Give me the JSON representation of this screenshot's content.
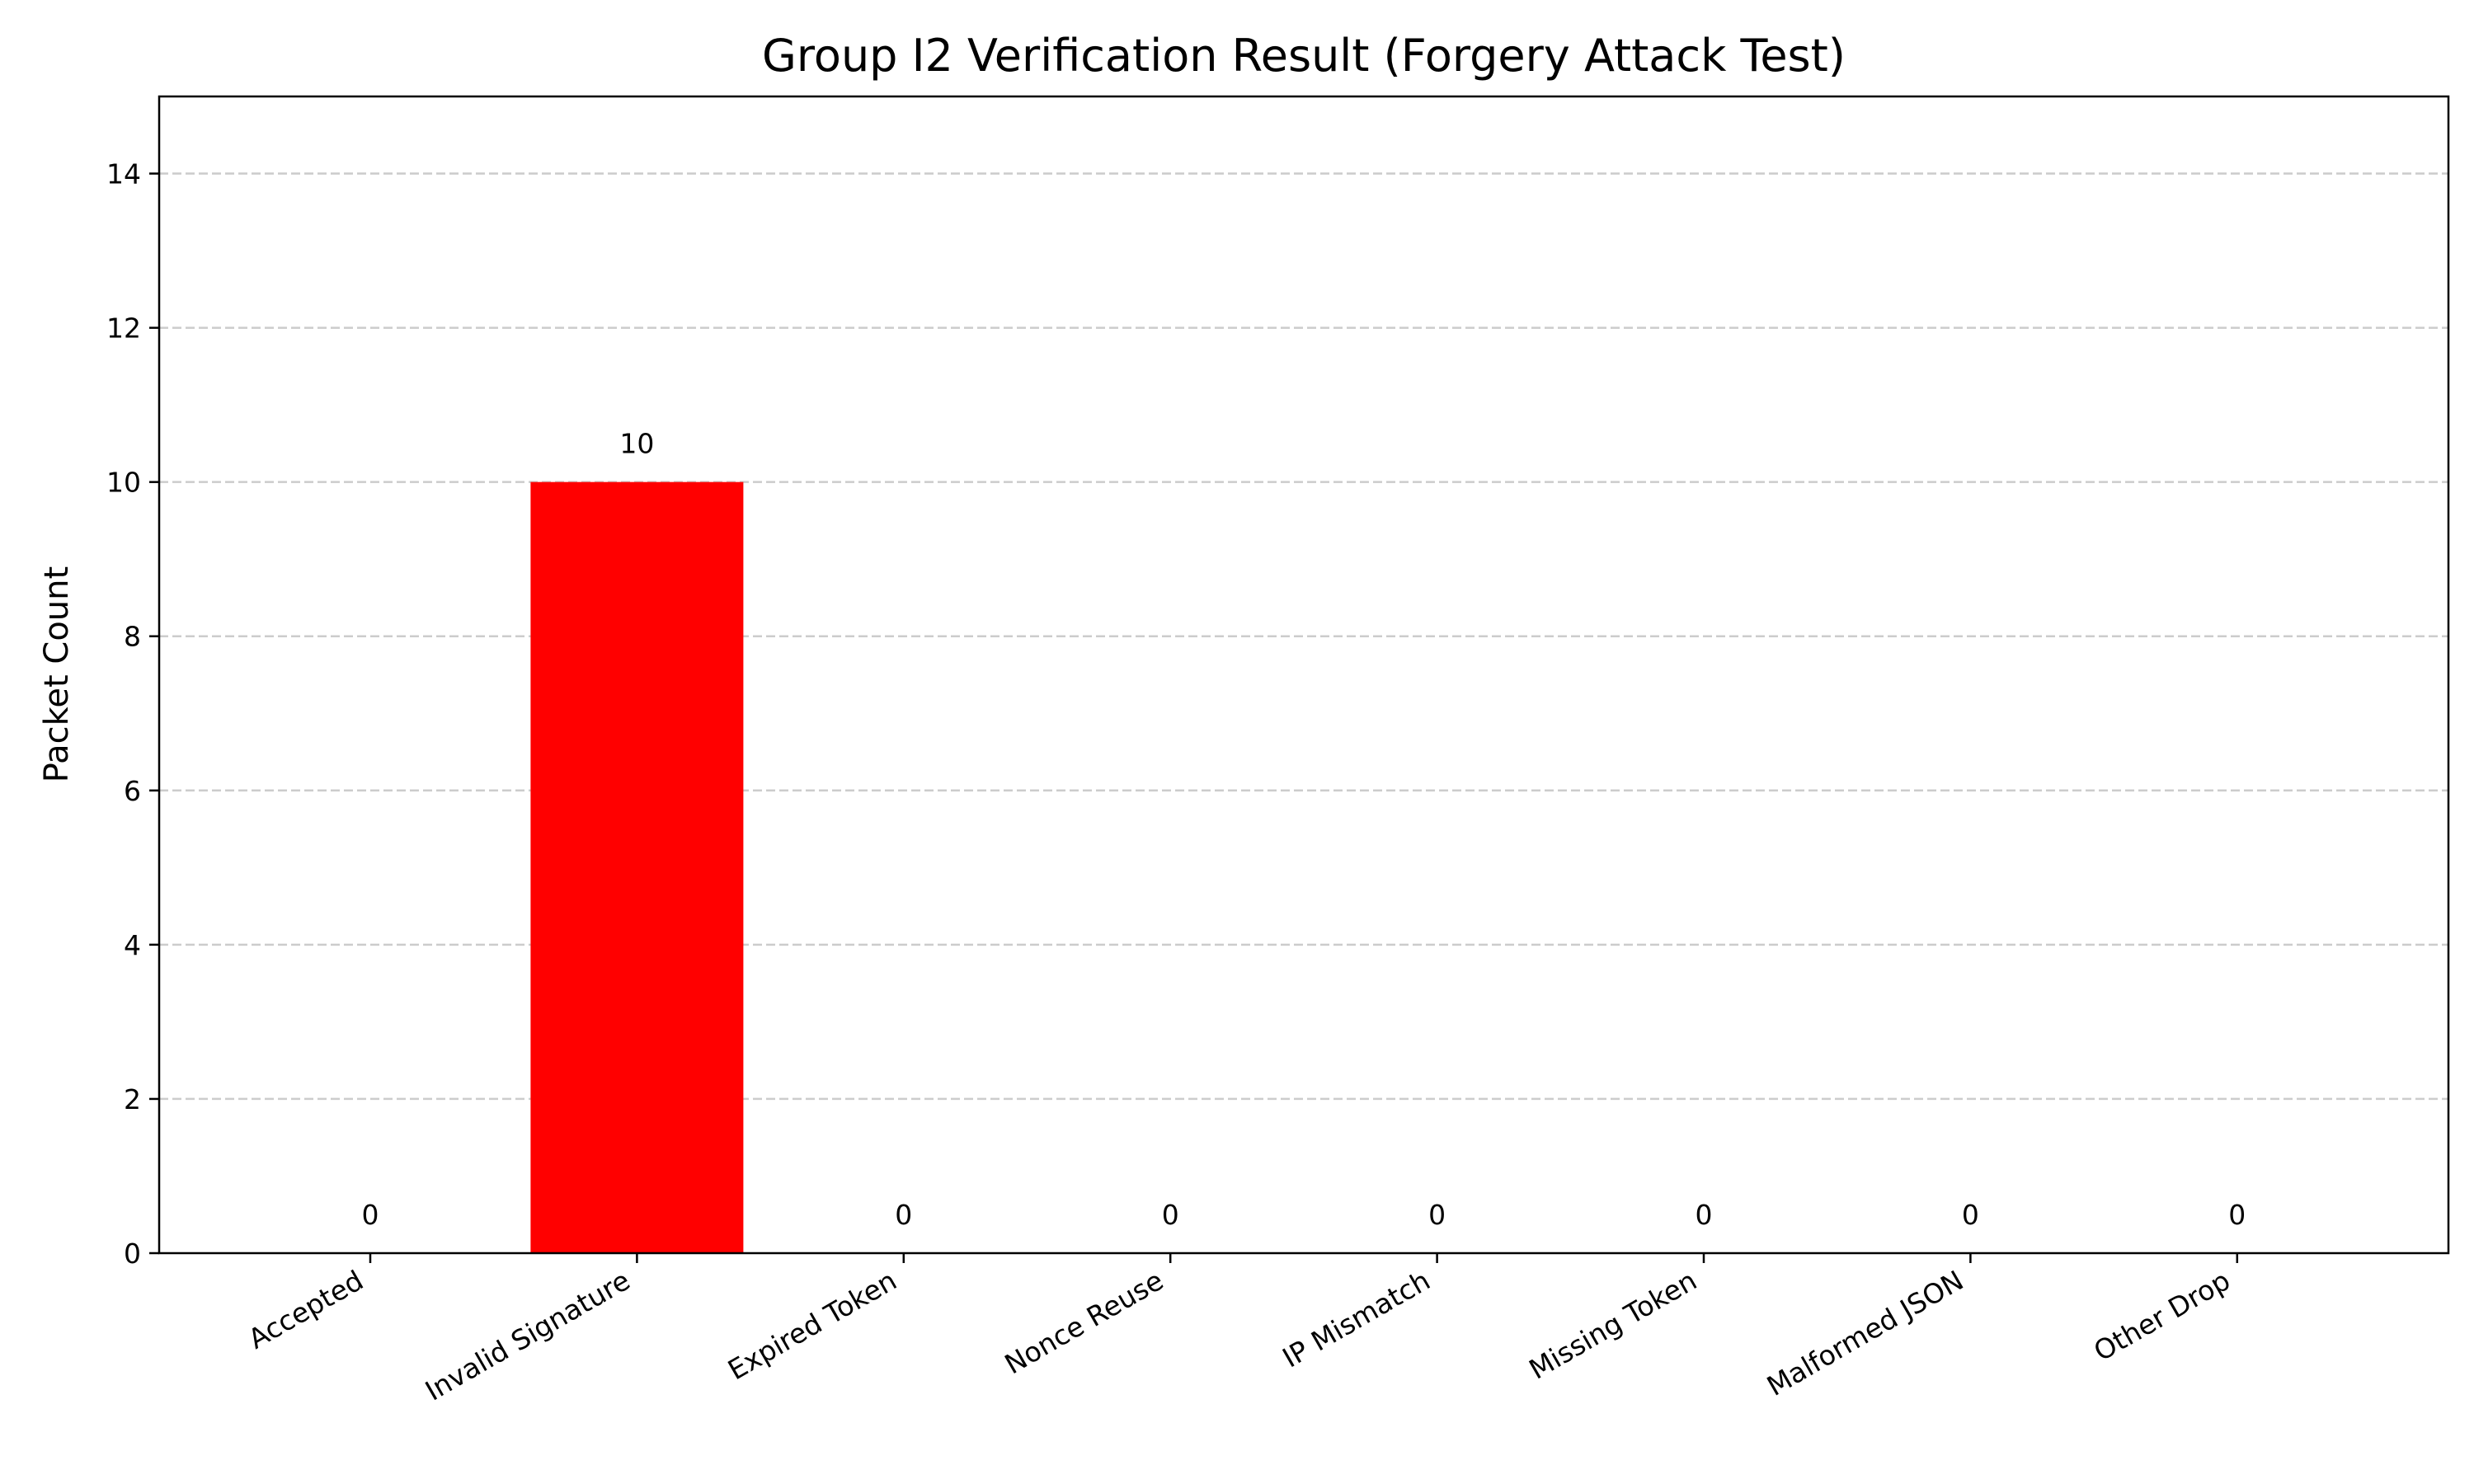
{
  "chart_data": {
    "type": "bar",
    "title": "Group I2 Verification Result (Forgery Attack Test)",
    "xlabel": "",
    "ylabel": "Packet Count",
    "categories": [
      "Accepted",
      "Invalid Signature",
      "Expired Token",
      "Nonce Reuse",
      "IP Mismatch",
      "Missing Token",
      "Malformed JSON",
      "Other Drop"
    ],
    "values": [
      0,
      10,
      0,
      0,
      0,
      0,
      0,
      0
    ],
    "data_labels": [
      "0",
      "10",
      "0",
      "0",
      "0",
      "0",
      "0",
      "0"
    ],
    "ylim": [
      0,
      15
    ],
    "yticks": [
      0,
      2,
      4,
      6,
      8,
      10,
      12,
      14
    ],
    "grid": "y-dashed",
    "bar_color": "#ff0000",
    "legend": "none"
  }
}
